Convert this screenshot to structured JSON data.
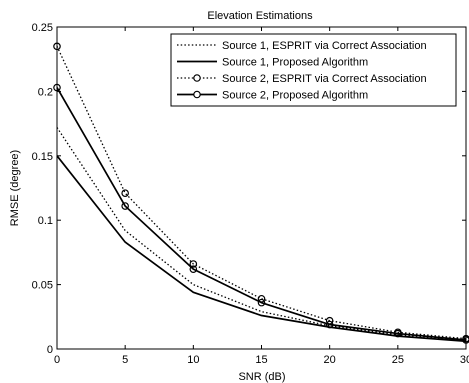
{
  "chart_data": {
    "type": "line",
    "title": "Elevation Estimations",
    "xlabel": "SNR (dB)",
    "ylabel": "RMSE (degree)",
    "xlim": [
      0,
      30
    ],
    "ylim": [
      0,
      0.25
    ],
    "xticks": [
      0,
      5,
      10,
      15,
      20,
      25,
      30
    ],
    "yticks": [
      0,
      0.05,
      0.1,
      0.15,
      0.2,
      0.25
    ],
    "ytick_labels": [
      "0",
      "0.05",
      "0.1",
      "0.15",
      "0.2",
      "0.25"
    ],
    "grid": false,
    "legend_position": "top-right",
    "x": [
      0,
      5,
      10,
      15,
      20,
      25,
      30
    ],
    "series": [
      {
        "name": "Source 1, ESPRIT via Correct Association",
        "line": "dotted",
        "marker": "none",
        "values": [
          0.172,
          0.092,
          0.05,
          0.029,
          0.018,
          0.011,
          0.007
        ]
      },
      {
        "name": "Source 1, Proposed Algorithm",
        "line": "solid",
        "marker": "none",
        "values": [
          0.15,
          0.083,
          0.044,
          0.026,
          0.017,
          0.01,
          0.006
        ]
      },
      {
        "name": "Source 2, ESPRIT via Correct Association",
        "line": "dotted",
        "marker": "circle",
        "values": [
          0.235,
          0.121,
          0.066,
          0.039,
          0.022,
          0.013,
          0.008
        ]
      },
      {
        "name": "Source 2, Proposed Algorithm",
        "line": "solid",
        "marker": "circle",
        "values": [
          0.203,
          0.111,
          0.062,
          0.036,
          0.019,
          0.012,
          0.007
        ]
      }
    ]
  }
}
